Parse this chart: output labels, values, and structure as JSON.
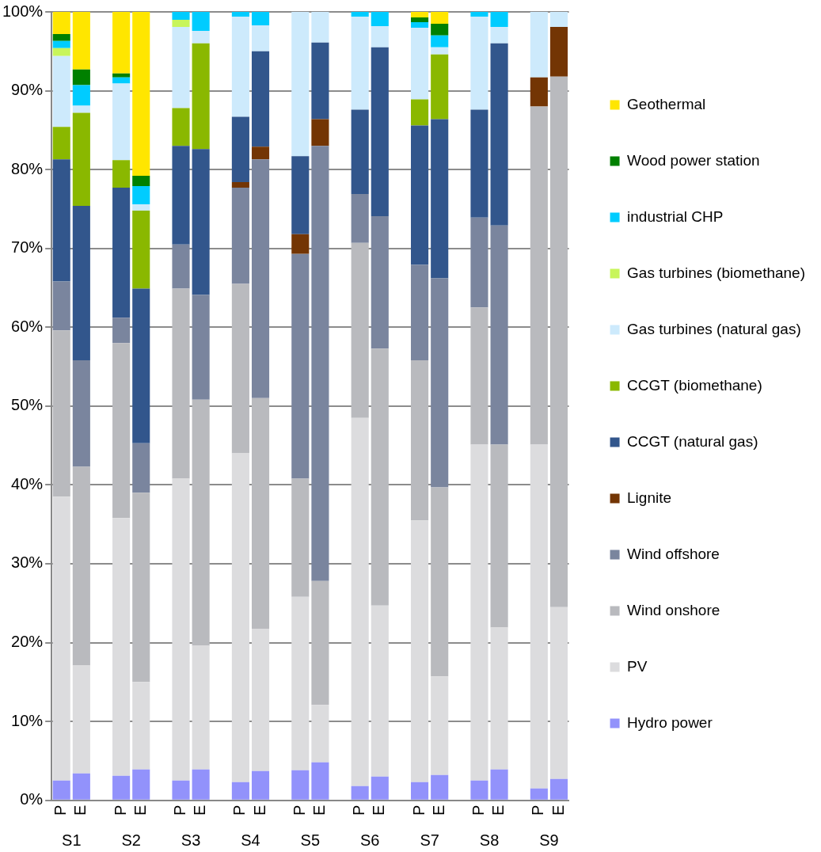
{
  "chart_data": {
    "type": "bar",
    "stacked": true,
    "legend": "right",
    "grid": "y",
    "categories": [
      "P",
      "E",
      null,
      "P",
      "E",
      null,
      "P",
      "E",
      null,
      "P",
      "E",
      null,
      "P",
      "E",
      null,
      "P",
      "E",
      null,
      "P",
      "E",
      null,
      "P",
      "E",
      null,
      "P",
      "E"
    ],
    "annotations": [
      "S1",
      "S2",
      "S3",
      "S4",
      "S5",
      "S6",
      "S7",
      "S8",
      "S9"
    ],
    "ylim": [
      0,
      100
    ],
    "yticks": [
      {
        "value": 0,
        "label": "0%"
      },
      {
        "value": 10,
        "label": "10%"
      },
      {
        "value": 20,
        "label": "20%"
      },
      {
        "value": 30,
        "label": "30%"
      },
      {
        "value": 40,
        "label": "40%"
      },
      {
        "value": 50,
        "label": "50%"
      },
      {
        "value": 60,
        "label": "60%"
      },
      {
        "value": 70,
        "label": "70%"
      },
      {
        "value": 80,
        "label": "80%"
      },
      {
        "value": 90,
        "label": "90%"
      },
      {
        "value": 100,
        "label": "100%"
      }
    ],
    "series": [
      {
        "name": "Hydro power",
        "color": "#9292fb",
        "values": [
          2.5,
          3.4,
          null,
          3.1,
          3.9,
          null,
          2.5,
          3.9,
          null,
          2.3,
          3.7,
          null,
          3.8,
          4.8,
          null,
          1.8,
          3.0,
          null,
          2.3,
          3.2,
          null,
          2.5,
          3.9,
          null,
          1.5,
          2.7
        ]
      },
      {
        "name": "PV",
        "color": "#dcdcde",
        "values": [
          36.0,
          13.7,
          null,
          32.7,
          11.1,
          null,
          38.3,
          15.7,
          null,
          41.7,
          18.0,
          null,
          22.0,
          7.3,
          null,
          46.7,
          21.7,
          null,
          33.2,
          12.5,
          null,
          42.6,
          18.0,
          null,
          43.6,
          21.8
        ]
      },
      {
        "name": "Wind onshore",
        "color": "#b9babe",
        "values": [
          21.1,
          25.2,
          null,
          22.2,
          24.0,
          null,
          24.1,
          31.2,
          null,
          21.5,
          29.3,
          null,
          15.0,
          15.7,
          null,
          22.2,
          32.6,
          null,
          20.3,
          24.0,
          null,
          17.4,
          23.2,
          null,
          42.9,
          67.3
        ]
      },
      {
        "name": "Wind offshore",
        "color": "#7a859e",
        "values": [
          6.2,
          13.5,
          null,
          3.2,
          6.3,
          null,
          5.6,
          13.3,
          null,
          12.2,
          30.3,
          null,
          28.5,
          55.2,
          null,
          6.2,
          16.8,
          null,
          12.1,
          26.5,
          null,
          11.4,
          27.8,
          null,
          0,
          0
        ]
      },
      {
        "name": "Lignite",
        "color": "#733504",
        "values": [
          0,
          0,
          null,
          0,
          0,
          null,
          0,
          0,
          null,
          0.7,
          1.6,
          null,
          2.5,
          3.4,
          null,
          0,
          0,
          null,
          0,
          0,
          null,
          0,
          0,
          null,
          3.7,
          6.3
        ]
      },
      {
        "name": "CCGT (natural gas)",
        "color": "#32568c",
        "values": [
          15.5,
          19.6,
          null,
          16.5,
          19.6,
          null,
          12.5,
          18.5,
          null,
          8.3,
          12.1,
          null,
          9.9,
          9.7,
          null,
          10.7,
          21.4,
          null,
          17.7,
          20.2,
          null,
          13.7,
          23.1,
          null,
          0,
          0
        ]
      },
      {
        "name": "CCGT (biomethane)",
        "color": "#8ab800",
        "values": [
          4.1,
          11.8,
          null,
          3.5,
          9.9,
          null,
          4.8,
          13.4,
          null,
          0,
          0,
          null,
          0,
          0,
          null,
          0,
          0,
          null,
          3.3,
          8.2,
          null,
          0,
          0,
          null,
          0,
          0
        ]
      },
      {
        "name": "Gas turbines (natural gas)",
        "color": "#cdeafc",
        "values": [
          9.0,
          0.9,
          null,
          9.7,
          0.8,
          null,
          10.3,
          1.6,
          null,
          12.7,
          3.3,
          null,
          18.3,
          3.9,
          null,
          11.8,
          2.7,
          null,
          9.1,
          0.9,
          null,
          11.8,
          2.1,
          null,
          8.3,
          1.9
        ]
      },
      {
        "name": "Gas turbines (biomethane)",
        "color": "#c8f55a",
        "values": [
          1.0,
          0,
          null,
          0,
          0,
          null,
          0.9,
          0,
          null,
          0,
          0,
          null,
          0,
          0,
          null,
          0,
          0,
          null,
          0,
          0,
          null,
          0,
          0,
          null,
          0,
          0
        ]
      },
      {
        "name": "industrial CHP",
        "color": "#00ccff",
        "values": [
          0.9,
          2.6,
          null,
          0.8,
          2.3,
          null,
          1.0,
          2.4,
          null,
          0.6,
          1.7,
          null,
          0,
          0,
          null,
          0.6,
          1.8,
          null,
          0.7,
          1.5,
          null,
          0.6,
          1.9,
          null,
          0,
          0
        ]
      },
      {
        "name": "Wood power station",
        "color": "#008000",
        "values": [
          0.9,
          2.0,
          null,
          0.5,
          1.3,
          null,
          0,
          0,
          null,
          0,
          0,
          null,
          0,
          0,
          null,
          0,
          0,
          null,
          0.6,
          1.5,
          null,
          0,
          0,
          null,
          0,
          0
        ]
      },
      {
        "name": "Geothermal",
        "color": "#ffe600",
        "values": [
          2.8,
          7.3,
          null,
          7.8,
          20.8,
          null,
          0,
          0,
          null,
          0,
          0,
          null,
          0,
          0,
          null,
          0,
          0,
          null,
          0.7,
          1.5,
          null,
          0,
          0,
          null,
          0,
          0
        ]
      }
    ]
  }
}
